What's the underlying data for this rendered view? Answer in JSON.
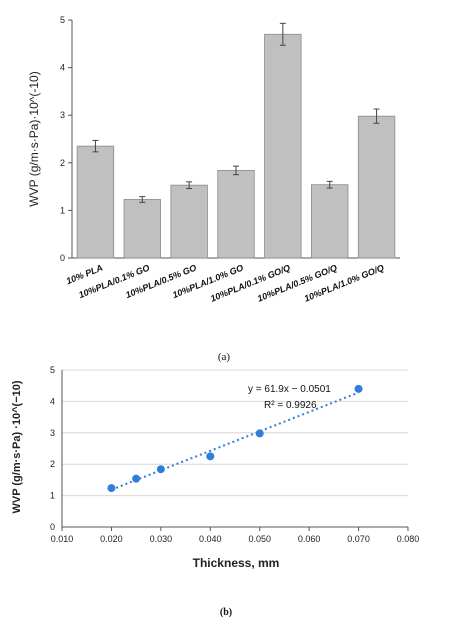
{
  "chart_data": [
    {
      "type": "bar",
      "panel_label": "(a)",
      "ylabel": "WVP (g/m·s·Pa)·10^(-10)",
      "ylim": [
        0,
        5
      ],
      "yticks": [
        "0",
        "1",
        "2",
        "3",
        "4",
        "5"
      ],
      "categories": [
        "10% PLA",
        "10%PLA/0.1% GO",
        "10%PLA/0.5% GO",
        "10%PLA/1.0% GO",
        "10%PLA/0.1% GO/Q",
        "10%PLA/0.5% GO/Q",
        "10%PLA/1.0% GO/Q"
      ],
      "values": [
        2.35,
        1.23,
        1.53,
        1.84,
        4.7,
        1.54,
        2.98
      ],
      "errors": [
        0.12,
        0.06,
        0.07,
        0.09,
        0.23,
        0.07,
        0.15
      ],
      "bar_color": "#c0c0c0",
      "grid": false
    },
    {
      "type": "scatter",
      "panel_label": "(b)",
      "xlabel": "Thickness, mm",
      "ylabel": "WVP (g/m·s·Pa) ·10^(−10)",
      "xlim": [
        0.01,
        0.08
      ],
      "ylim": [
        0,
        5
      ],
      "xticks": [
        "0.010",
        "0.020",
        "0.030",
        "0.040",
        "0.050",
        "0.060",
        "0.070",
        "0.080"
      ],
      "yticks": [
        "0",
        "1",
        "2",
        "3",
        "4",
        "5"
      ],
      "x": [
        0.02,
        0.025,
        0.03,
        0.04,
        0.05,
        0.07
      ],
      "y": [
        1.24,
        1.54,
        1.84,
        2.25,
        2.98,
        4.4
      ],
      "trendline": {
        "slope": 61.9,
        "intercept": -0.0501
      },
      "equation": "y = 61.9x − 0.0501",
      "r_squared": "R² = 0.9926",
      "marker_color": "#2f7ed8",
      "grid": true
    }
  ]
}
